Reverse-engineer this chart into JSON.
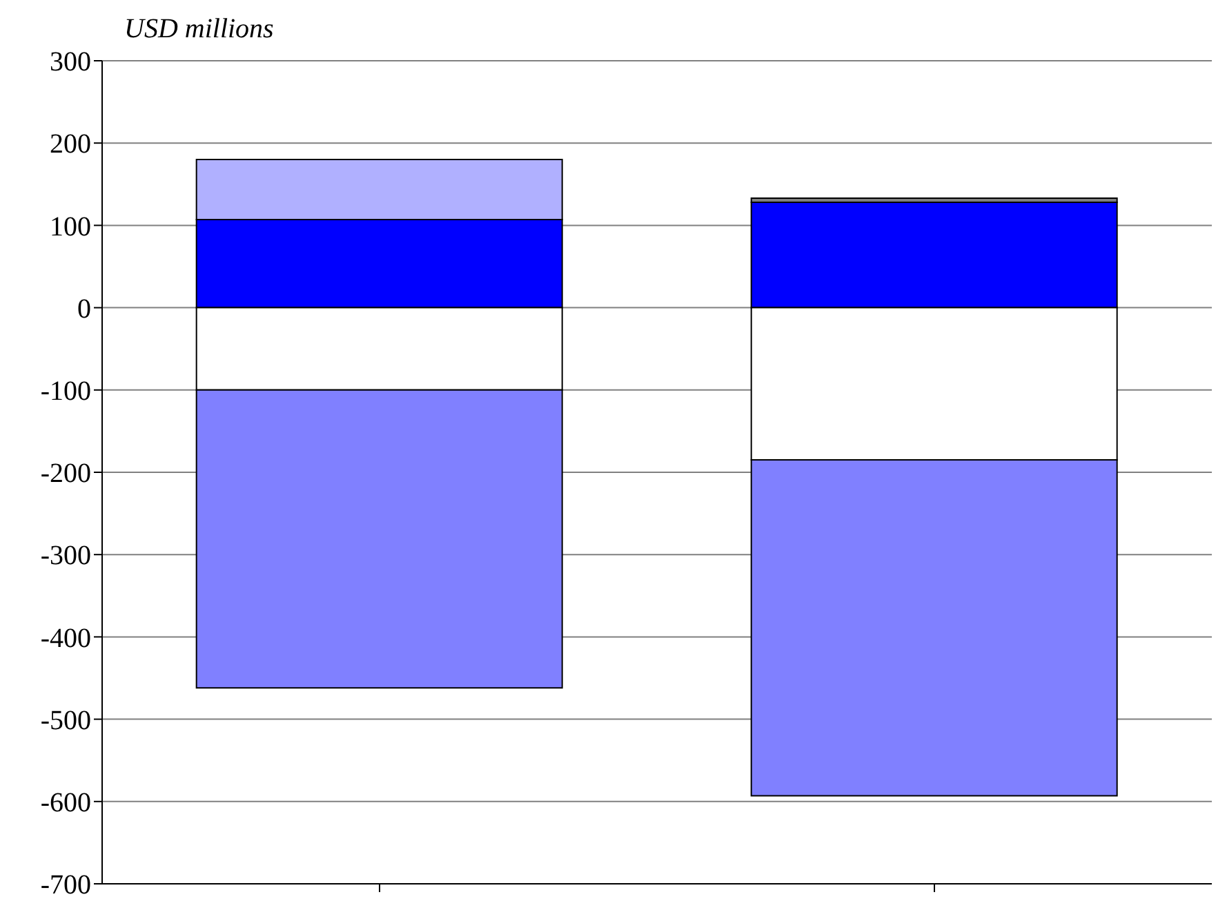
{
  "chart_data": {
    "type": "bar",
    "ylabel": "USD millions",
    "categories": [
      null,
      null
    ],
    "stacked": true,
    "series": [
      {
        "color": "#0000ff",
        "values": [
          107,
          128
        ]
      },
      {
        "color": "#b0b0ff",
        "values": [
          73,
          null
        ]
      },
      {
        "color": "#808080",
        "values": [
          null,
          5
        ]
      },
      {
        "color": "#ffffff",
        "values": [
          -100,
          -185
        ]
      },
      {
        "color": "#8080ff",
        "values": [
          -362,
          -408
        ]
      }
    ],
    "ylim": [
      -700,
      300
    ],
    "yticks": [
      -700,
      -600,
      -500,
      -400,
      -300,
      -200,
      -100,
      0,
      100,
      200,
      300
    ],
    "grid": "y",
    "legend": false,
    "tick_labels": "y"
  }
}
